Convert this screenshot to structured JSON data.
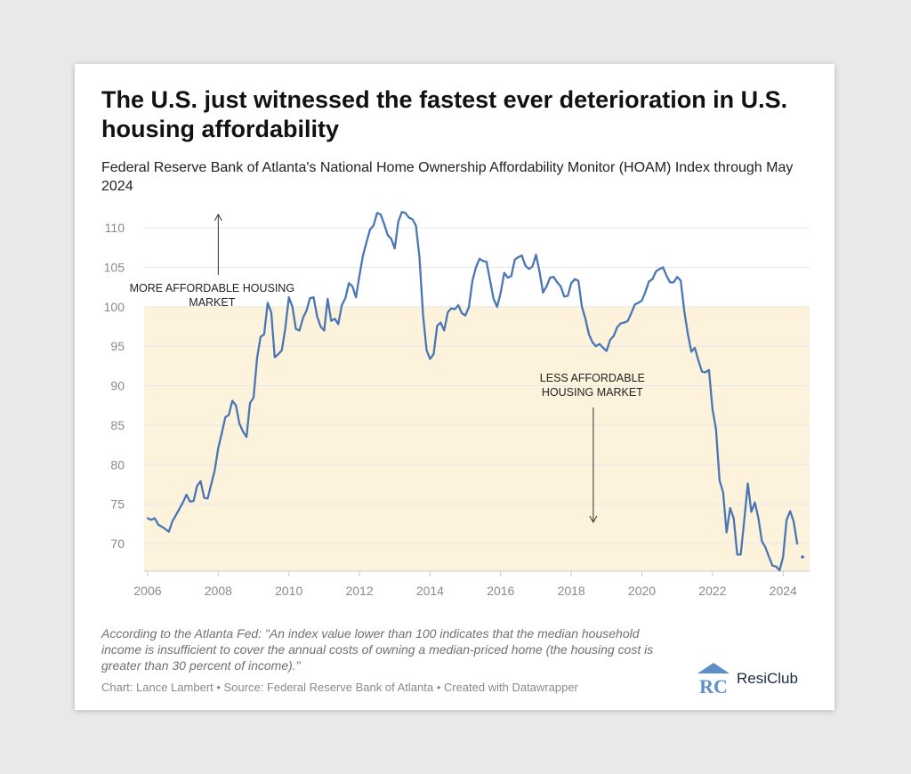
{
  "title": "The U.S. just witnessed the fastest ever deterioration in U.S. housing affordability",
  "subtitle": "Federal Reserve Bank of Atlanta's National Home Ownership Affordability Monitor (HOAM) Index through May 2024",
  "note": "According to the Atlanta Fed: \"An index value lower than 100 indicates that the median household income is insufficient to cover the annual costs of owning a median-priced home (the housing cost is greater than 30 percent of income).\"",
  "credit": "Chart: Lance Lambert • Source: Federal Reserve Bank of Atlanta • Created with Datawrapper",
  "brand": {
    "name": "ResiClub",
    "logo_text": "RC",
    "logo_icon": "house-roof-icon"
  },
  "colors": {
    "line": "#4a76b4",
    "shade": "#fdf3dc",
    "grid": "#e6e6e6",
    "text": "#8a8a8a",
    "brand": "#5d8fc9"
  },
  "chart_data": {
    "type": "line",
    "title": "",
    "xlabel": "",
    "ylabel": "",
    "xlim": [
      2005.9,
      2024.75
    ],
    "ylim": [
      66.5,
      112.5
    ],
    "xticks": [
      2006,
      2008,
      2010,
      2012,
      2014,
      2016,
      2018,
      2020,
      2022,
      2024
    ],
    "yticks": [
      70,
      75,
      80,
      85,
      90,
      95,
      100,
      105,
      110
    ],
    "grid": "horizontal",
    "shaded_region": {
      "y_from": 66.5,
      "y_to": 100
    },
    "annotations": [
      {
        "text": "MORE AFFORDABLE HOUSING MARKET",
        "x": 2008.0,
        "y": 103,
        "arrow": "up"
      },
      {
        "text": "LESS AFFORDABLE HOUSING MARKET",
        "x": 2018.9,
        "y": 91.5,
        "arrow": "down"
      }
    ],
    "series": [
      {
        "x": [
          2006.0,
          2006.1,
          2006.2,
          2006.3,
          2006.45,
          2006.6,
          2006.7,
          2006.85,
          2007.0,
          2007.1,
          2007.2,
          2007.3,
          2007.4,
          2007.5,
          2007.6,
          2007.7,
          2007.8,
          2007.9,
          2008.0,
          2008.1,
          2008.2,
          2008.3,
          2008.4,
          2008.5,
          2008.6,
          2008.7,
          2008.8,
          2008.9,
          2009.0,
          2009.1,
          2009.2,
          2009.3,
          2009.4,
          2009.5,
          2009.6,
          2009.7,
          2009.8,
          2009.9,
          2010.0,
          2010.1,
          2010.2,
          2010.3,
          2010.4,
          2010.5,
          2010.6,
          2010.7,
          2010.8,
          2010.9,
          2011.0,
          2011.1,
          2011.2,
          2011.3,
          2011.4,
          2011.5,
          2011.6,
          2011.7,
          2011.8,
          2011.9,
          2012.0,
          2012.1,
          2012.2,
          2012.3,
          2012.4,
          2012.5,
          2012.6,
          2012.7,
          2012.8,
          2012.9,
          2013.0,
          2013.1,
          2013.2,
          2013.3,
          2013.4,
          2013.5,
          2013.6,
          2013.7,
          2013.8,
          2013.9,
          2014.0,
          2014.1,
          2014.2,
          2014.3,
          2014.4,
          2014.5,
          2014.6,
          2014.7,
          2014.8,
          2014.9,
          2015.0,
          2015.1,
          2015.2,
          2015.3,
          2015.4,
          2015.5,
          2015.6,
          2015.7,
          2015.8,
          2015.9,
          2016.0,
          2016.1,
          2016.2,
          2016.3,
          2016.4,
          2016.5,
          2016.6,
          2016.7,
          2016.8,
          2016.9,
          2017.0,
          2017.1,
          2017.2,
          2017.3,
          2017.4,
          2017.5,
          2017.6,
          2017.7,
          2017.8,
          2017.9,
          2018.0,
          2018.1,
          2018.2,
          2018.3,
          2018.4,
          2018.5,
          2018.6,
          2018.7,
          2018.8,
          2018.9,
          2019.0,
          2019.1,
          2019.2,
          2019.3,
          2019.4,
          2019.5,
          2019.6,
          2019.7,
          2019.8,
          2019.9,
          2020.0,
          2020.1,
          2020.2,
          2020.3,
          2020.4,
          2020.5,
          2020.6,
          2020.7,
          2020.8,
          2020.9,
          2021.0,
          2021.1,
          2021.2,
          2021.3,
          2021.4,
          2021.5,
          2021.6,
          2021.7,
          2021.8,
          2021.9,
          2022.0,
          2022.1,
          2022.2,
          2022.3,
          2022.4,
          2022.5,
          2022.6,
          2022.7,
          2022.8,
          2022.9,
          2023.0,
          2023.1,
          2023.2,
          2023.3,
          2023.4,
          2023.5,
          2023.6,
          2023.7,
          2023.8,
          2023.9,
          2024.0,
          2024.1,
          2024.2,
          2024.3,
          2024.4
        ],
        "y": [
          73.2,
          73.0,
          73.2,
          72.4,
          72.0,
          71.5,
          72.8,
          74.0,
          75.2,
          76.2,
          75.3,
          75.4,
          77.3,
          77.9,
          75.8,
          75.7,
          77.5,
          79.3,
          82.1,
          84.0,
          86.0,
          86.3,
          88.1,
          87.5,
          85.2,
          84.2,
          83.5,
          87.8,
          88.5,
          93.5,
          96.2,
          96.5,
          100.5,
          99.3,
          93.6,
          94.0,
          94.5,
          97.3,
          101.2,
          100.0,
          97.2,
          97.0,
          98.6,
          99.5,
          101.1,
          101.2,
          98.8,
          97.5,
          97.0,
          101.0,
          98.2,
          98.5,
          97.8,
          100.2,
          101.1,
          103.0,
          102.6,
          101.2,
          104.0,
          106.5,
          108.2,
          109.8,
          110.3,
          111.9,
          111.7,
          110.5,
          109.1,
          108.6,
          107.4,
          110.8,
          112.0,
          111.9,
          111.3,
          111.1,
          110.3,
          106.3,
          99.0,
          94.5,
          93.4,
          94.0,
          97.6,
          98.0,
          97.0,
          99.3,
          99.8,
          99.7,
          100.2,
          99.2,
          98.9,
          100.0,
          103.3,
          105.0,
          106.1,
          105.8,
          105.7,
          103.3,
          101.0,
          100.0,
          101.8,
          104.3,
          103.7,
          103.9,
          106.0,
          106.3,
          106.5,
          105.2,
          104.8,
          105.1,
          106.6,
          104.5,
          101.8,
          102.6,
          103.7,
          103.8,
          103.1,
          102.6,
          101.3,
          101.4,
          103.0,
          103.5,
          103.3,
          100.0,
          98.5,
          96.5,
          95.5,
          95.0,
          95.3,
          94.8,
          94.4,
          95.8,
          96.3,
          97.4,
          97.9,
          98.0,
          98.2,
          99.2,
          100.3,
          100.5,
          100.8,
          101.9,
          103.2,
          103.5,
          104.5,
          104.8,
          105.0,
          103.9,
          103.1,
          103.1,
          103.8,
          103.3,
          99.5,
          96.6,
          94.3,
          94.8,
          93.2,
          91.8,
          91.7,
          92.0,
          87.0,
          84.5,
          78.0,
          76.5,
          71.4,
          74.5,
          73.2,
          68.6,
          68.6,
          73.0,
          77.6,
          74.0,
          75.2,
          73.2,
          70.3,
          69.5,
          68.3,
          67.2,
          67.1,
          66.6,
          68.3,
          73.0,
          74.1,
          72.8,
          70.0
        ]
      }
    ],
    "endpoint": {
      "x": 2024.55,
      "y": 68.3
    }
  }
}
